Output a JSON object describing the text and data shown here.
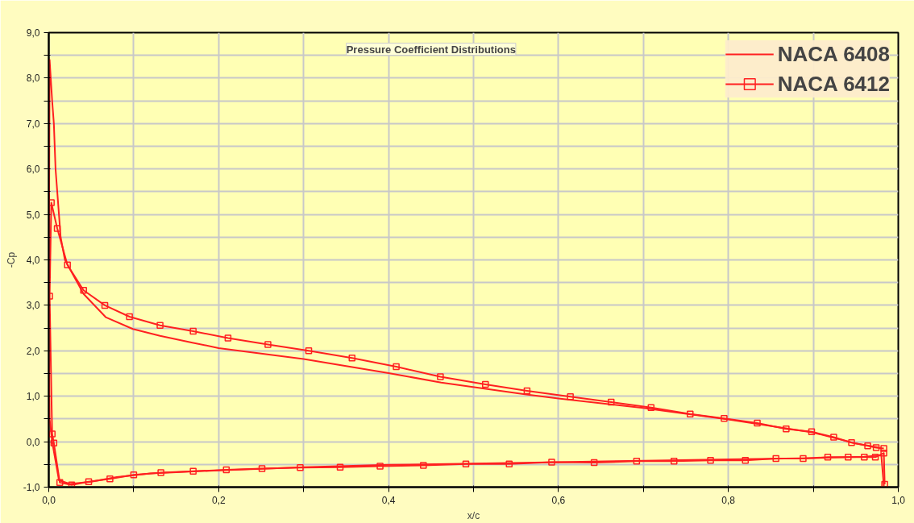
{
  "chart_data": {
    "type": "line",
    "title": "Pressure Coefficient Distributions",
    "xlabel": "x/c",
    "ylabel": "-Cp",
    "xlim": [
      0,
      1
    ],
    "ylim": [
      -1,
      9
    ],
    "xticks": [
      {
        "value": 0,
        "label": "0,0"
      },
      {
        "value": 0.1,
        "label": null
      },
      {
        "value": 0.2,
        "label": "0,2"
      },
      {
        "value": 0.3,
        "label": null
      },
      {
        "value": 0.4,
        "label": "0,4"
      },
      {
        "value": 0.5,
        "label": null
      },
      {
        "value": 0.6,
        "label": "0,6"
      },
      {
        "value": 0.7,
        "label": null
      },
      {
        "value": 0.8,
        "label": "0,8"
      },
      {
        "value": 0.9,
        "label": null
      },
      {
        "value": 1,
        "label": "1,0"
      }
    ],
    "yticks": [
      {
        "value": -1,
        "label": "-1,0"
      },
      {
        "value": -0.5,
        "label": null
      },
      {
        "value": 0,
        "label": "0,0"
      },
      {
        "value": 0.5,
        "label": null
      },
      {
        "value": 1,
        "label": "1,0"
      },
      {
        "value": 1.5,
        "label": null
      },
      {
        "value": 2,
        "label": "2,0"
      },
      {
        "value": 2.5,
        "label": null
      },
      {
        "value": 3,
        "label": "3,0"
      },
      {
        "value": 3.5,
        "label": null
      },
      {
        "value": 4,
        "label": "4,0"
      },
      {
        "value": 4.5,
        "label": null
      },
      {
        "value": 5,
        "label": "5,0"
      },
      {
        "value": 5.5,
        "label": null
      },
      {
        "value": 6,
        "label": "6,0"
      },
      {
        "value": 6.5,
        "label": null
      },
      {
        "value": 7,
        "label": "7,0"
      },
      {
        "value": 7.5,
        "label": null
      },
      {
        "value": 8,
        "label": "8,0"
      },
      {
        "value": 8.5,
        "label": null
      },
      {
        "value": 9,
        "label": "9,0"
      }
    ],
    "grid": true,
    "legend": "top right",
    "line_style": "solid",
    "series": [
      {
        "name": "NACA 6408",
        "color": "#ff2020",
        "marker": "none",
        "x": [
          0.98,
          0.975,
          0.95,
          0.9,
          0.8,
          0.7,
          0.6,
          0.562,
          0.462,
          0.4,
          0.3,
          0.2,
          0.169,
          0.131,
          0.099,
          0.067,
          0.041,
          0.019,
          0.014,
          0.012,
          0.008,
          0.006,
          0.004,
          0.002,
          0.001,
          0.0,
          0.001,
          0.004,
          0.012,
          0.025,
          0.05,
          0.08,
          0.12,
          0.2,
          0.3,
          0.4,
          0.5,
          0.6,
          0.7,
          0.8,
          0.9,
          0.96,
          0.98,
          0.983
        ],
        "values": [
          -0.15,
          -0.12,
          -0.04,
          0.2,
          0.49,
          0.74,
          0.95,
          1.04,
          1.3,
          1.51,
          1.82,
          2.06,
          2.18,
          2.33,
          2.48,
          2.74,
          3.25,
          4.0,
          4.5,
          5.0,
          6.0,
          7.0,
          7.5,
          8.1,
          8.4,
          2.5,
          0.5,
          0.0,
          -0.85,
          -0.93,
          -0.88,
          -0.78,
          -0.7,
          -0.63,
          -0.56,
          -0.51,
          -0.48,
          -0.45,
          -0.42,
          -0.39,
          -0.36,
          -0.33,
          -0.3,
          -0.98
        ]
      },
      {
        "name": "NACA 6412",
        "color": "#ff2020",
        "marker": "square",
        "x": [
          0.983,
          0.974,
          0.964,
          0.945,
          0.924,
          0.898,
          0.868,
          0.834,
          0.795,
          0.755,
          0.709,
          0.662,
          0.614,
          0.563,
          0.514,
          0.461,
          0.409,
          0.357,
          0.306,
          0.258,
          0.211,
          0.17,
          0.131,
          0.095,
          0.066,
          0.041,
          0.022,
          0.01,
          0.003,
          0.001,
          0.004,
          0.006,
          0.013,
          0.027,
          0.047,
          0.072,
          0.1,
          0.132,
          0.17,
          0.209,
          0.251,
          0.296,
          0.343,
          0.39,
          0.441,
          0.491,
          0.542,
          0.592,
          0.642,
          0.692,
          0.736,
          0.779,
          0.82,
          0.856,
          0.888,
          0.917,
          0.941,
          0.96,
          0.973,
          0.983,
          0.984
        ],
        "values": [
          -0.15,
          -0.13,
          -0.09,
          -0.02,
          0.1,
          0.22,
          0.28,
          0.41,
          0.51,
          0.61,
          0.75,
          0.87,
          0.99,
          1.12,
          1.26,
          1.43,
          1.65,
          1.84,
          2.0,
          2.14,
          2.28,
          2.43,
          2.56,
          2.75,
          3.0,
          3.33,
          3.89,
          4.69,
          5.26,
          3.2,
          0.17,
          -0.03,
          -0.9,
          -0.95,
          -0.88,
          -0.82,
          -0.73,
          -0.68,
          -0.65,
          -0.62,
          -0.59,
          -0.57,
          -0.56,
          -0.54,
          -0.52,
          -0.49,
          -0.49,
          -0.45,
          -0.46,
          -0.43,
          -0.43,
          -0.41,
          -0.41,
          -0.37,
          -0.37,
          -0.34,
          -0.34,
          -0.34,
          -0.34,
          -0.25,
          -0.94
        ]
      }
    ]
  }
}
